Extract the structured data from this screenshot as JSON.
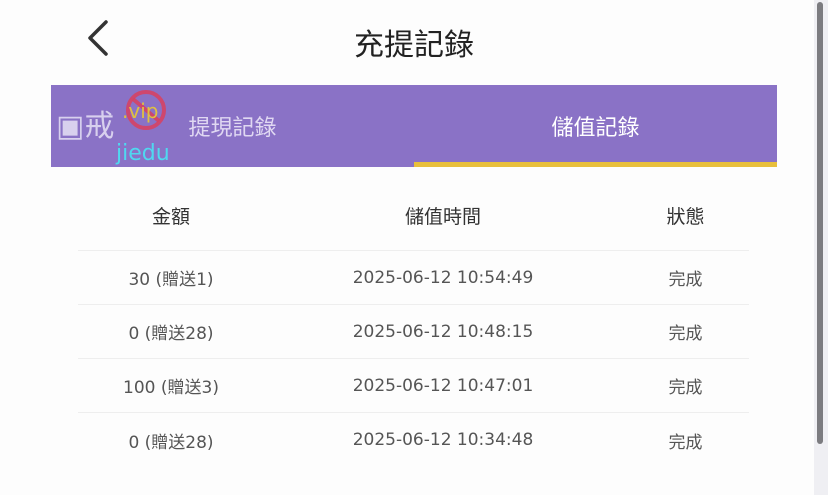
{
  "header": {
    "title": "充提記錄",
    "back_icon": "chevron-left-icon"
  },
  "tabs": [
    {
      "label": "提現記錄",
      "active": false
    },
    {
      "label": "儲值記錄",
      "active": true
    }
  ],
  "colors": {
    "tab_bg": "#8a72c6",
    "active_underline": "#e8bf3c"
  },
  "watermark": {
    "text": "戒賭吧 jiedu.vip"
  },
  "table": {
    "columns": [
      "金額",
      "儲值時間",
      "狀態"
    ],
    "rows": [
      [
        "30 (贈送1)",
        "2025-06-12 10:54:49",
        "完成"
      ],
      [
        "0 (贈送28)",
        "2025-06-12 10:48:15",
        "完成"
      ],
      [
        "100 (贈送3)",
        "2025-06-12 10:47:01",
        "完成"
      ],
      [
        "0 (贈送28)",
        "2025-06-12 10:34:48",
        "完成"
      ]
    ]
  }
}
